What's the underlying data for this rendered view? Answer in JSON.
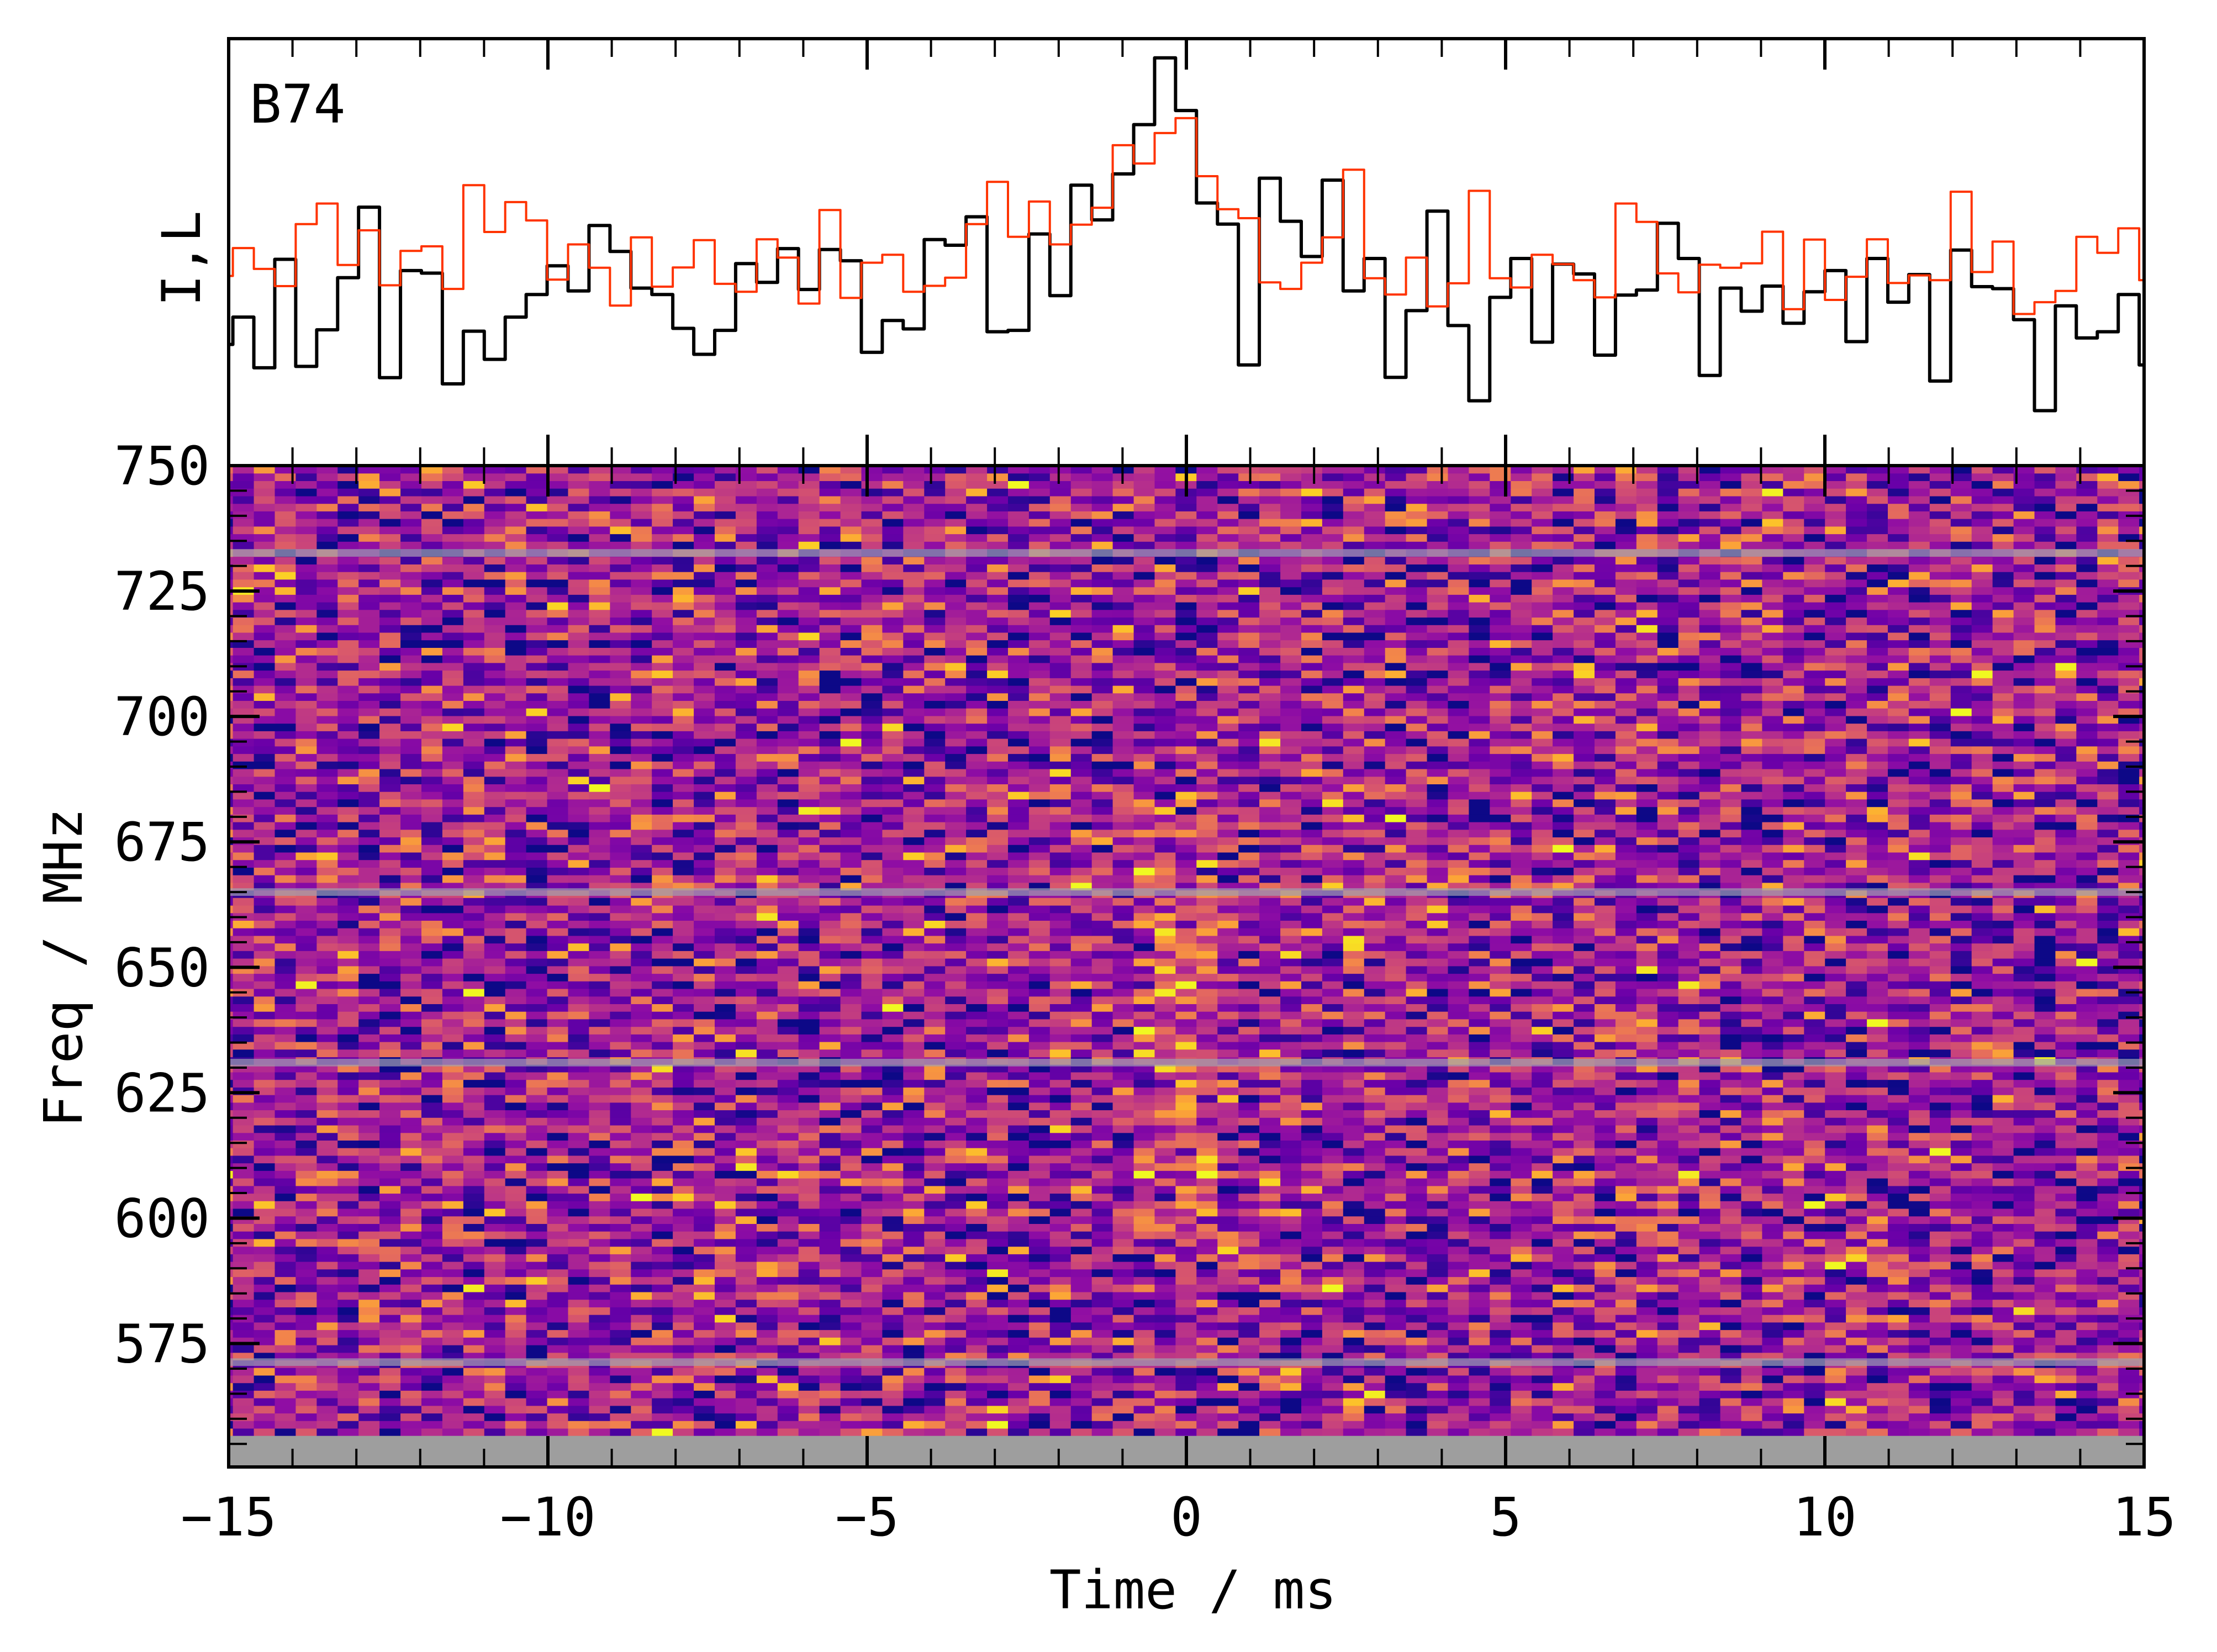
{
  "chart_data": [
    {
      "type": "line",
      "panel": "profile",
      "title": "B74",
      "ylabel": "I,L",
      "xlim": [
        -15,
        15
      ],
      "ylim": [
        0,
        15.15
      ],
      "bins": {
        "start_ms": -15.262,
        "width_ms": 0.3281
      },
      "colors": {
        "I": "#000000",
        "L": "#ff3300"
      },
      "I": [
        4.3,
        5.27,
        3.47,
        7.32,
        3.52,
        4.82,
        6.67,
        9.17,
        3.12,
        6.92,
        6.83,
        2.9,
        4.77,
        3.77,
        5.27,
        6.07,
        7.09,
        6.2,
        8.52,
        7.6,
        6.3,
        6.07,
        4.87,
        3.95,
        4.8,
        7.17,
        6.5,
        7.7,
        6.25,
        7.67,
        7.27,
        4.02,
        5.15,
        4.85,
        8.02,
        7.82,
        8.83,
        4.75,
        4.8,
        8.22,
        6.03,
        9.95,
        8.72,
        10.35,
        12.1,
        14.47,
        12.6,
        9.32,
        8.57,
        3.57,
        10.2,
        8.67,
        7.42,
        10.13,
        6.2,
        7.35,
        3.13,
        5.5,
        9.03,
        4.97,
        2.3,
        5.97,
        7.35,
        4.38,
        7.15,
        6.8,
        3.92,
        6.05,
        6.23,
        8.6,
        7.35,
        3.2,
        6.3,
        5.48,
        6.37,
        5.05,
        6.17,
        6.92,
        4.4,
        7.35,
        5.8,
        6.78,
        3.0,
        7.65,
        6.35,
        6.28,
        5.18,
        1.95,
        5.67,
        4.53,
        4.75,
        6.07,
        3.57
      ],
      "L": [
        6.73,
        7.72,
        6.98,
        6.37,
        8.57,
        9.3,
        7.12,
        8.35,
        6.4,
        7.62,
        7.78,
        6.27,
        9.95,
        8.29,
        9.35,
        8.7,
        6.6,
        7.85,
        7.02,
        5.68,
        8.1,
        6.35,
        7.03,
        8.0,
        6.45,
        6.17,
        8.03,
        7.38,
        5.75,
        9.07,
        5.95,
        7.2,
        7.48,
        6.17,
        6.38,
        6.67,
        8.57,
        10.07,
        8.12,
        9.37,
        7.85,
        8.55,
        9.15,
        11.37,
        10.72,
        11.8,
        12.33,
        10.27,
        9.1,
        8.78,
        6.5,
        6.27,
        7.2,
        8.1,
        10.5,
        6.65,
        6.07,
        7.38,
        5.65,
        6.47,
        9.75,
        6.65,
        6.32,
        7.48,
        7.15,
        6.58,
        5.97,
        9.3,
        8.65,
        6.82,
        6.15,
        7.13,
        7.02,
        7.18,
        8.3,
        5.55,
        8.02,
        5.88,
        6.7,
        8.03,
        6.48,
        6.75,
        6.58,
        9.72,
        6.87,
        7.95,
        5.38,
        5.8,
        6.2,
        8.12,
        7.55,
        8.42,
        6.58
      ]
    },
    {
      "type": "heatmap",
      "panel": "dynamic-spectrum",
      "xlabel": "Time / ms",
      "ylabel": "Freq / MHz",
      "xlim": [
        -15,
        15
      ],
      "ylim": [
        550.4,
        750
      ],
      "colormap": "plasma",
      "n_channels": 128,
      "data_freq_range": [
        556.6,
        750
      ],
      "masked_band_color": "#9e9e9e",
      "masked_channels_mhz": [
        732.6,
        665.0,
        631.0,
        571.3
      ],
      "burst": {
        "t_ms": 0.0,
        "freq_range": [
          595,
          685
        ]
      },
      "x_ticks": [
        {
          "value": -15,
          "label": "−15"
        },
        {
          "value": -10,
          "label": "−10"
        },
        {
          "value": -5,
          "label": "−5"
        },
        {
          "value": 0,
          "label": "0"
        },
        {
          "value": 5,
          "label": "5"
        },
        {
          "value": 10,
          "label": "10"
        },
        {
          "value": 15,
          "label": "15"
        }
      ],
      "y_ticks": [
        {
          "value": 750,
          "label": "750"
        },
        {
          "value": 725,
          "label": "725"
        },
        {
          "value": 700,
          "label": "700"
        },
        {
          "value": 675,
          "label": "675"
        },
        {
          "value": 650,
          "label": "650"
        },
        {
          "value": 625,
          "label": "625"
        },
        {
          "value": 600,
          "label": "600"
        },
        {
          "value": 575,
          "label": "575"
        }
      ]
    }
  ]
}
